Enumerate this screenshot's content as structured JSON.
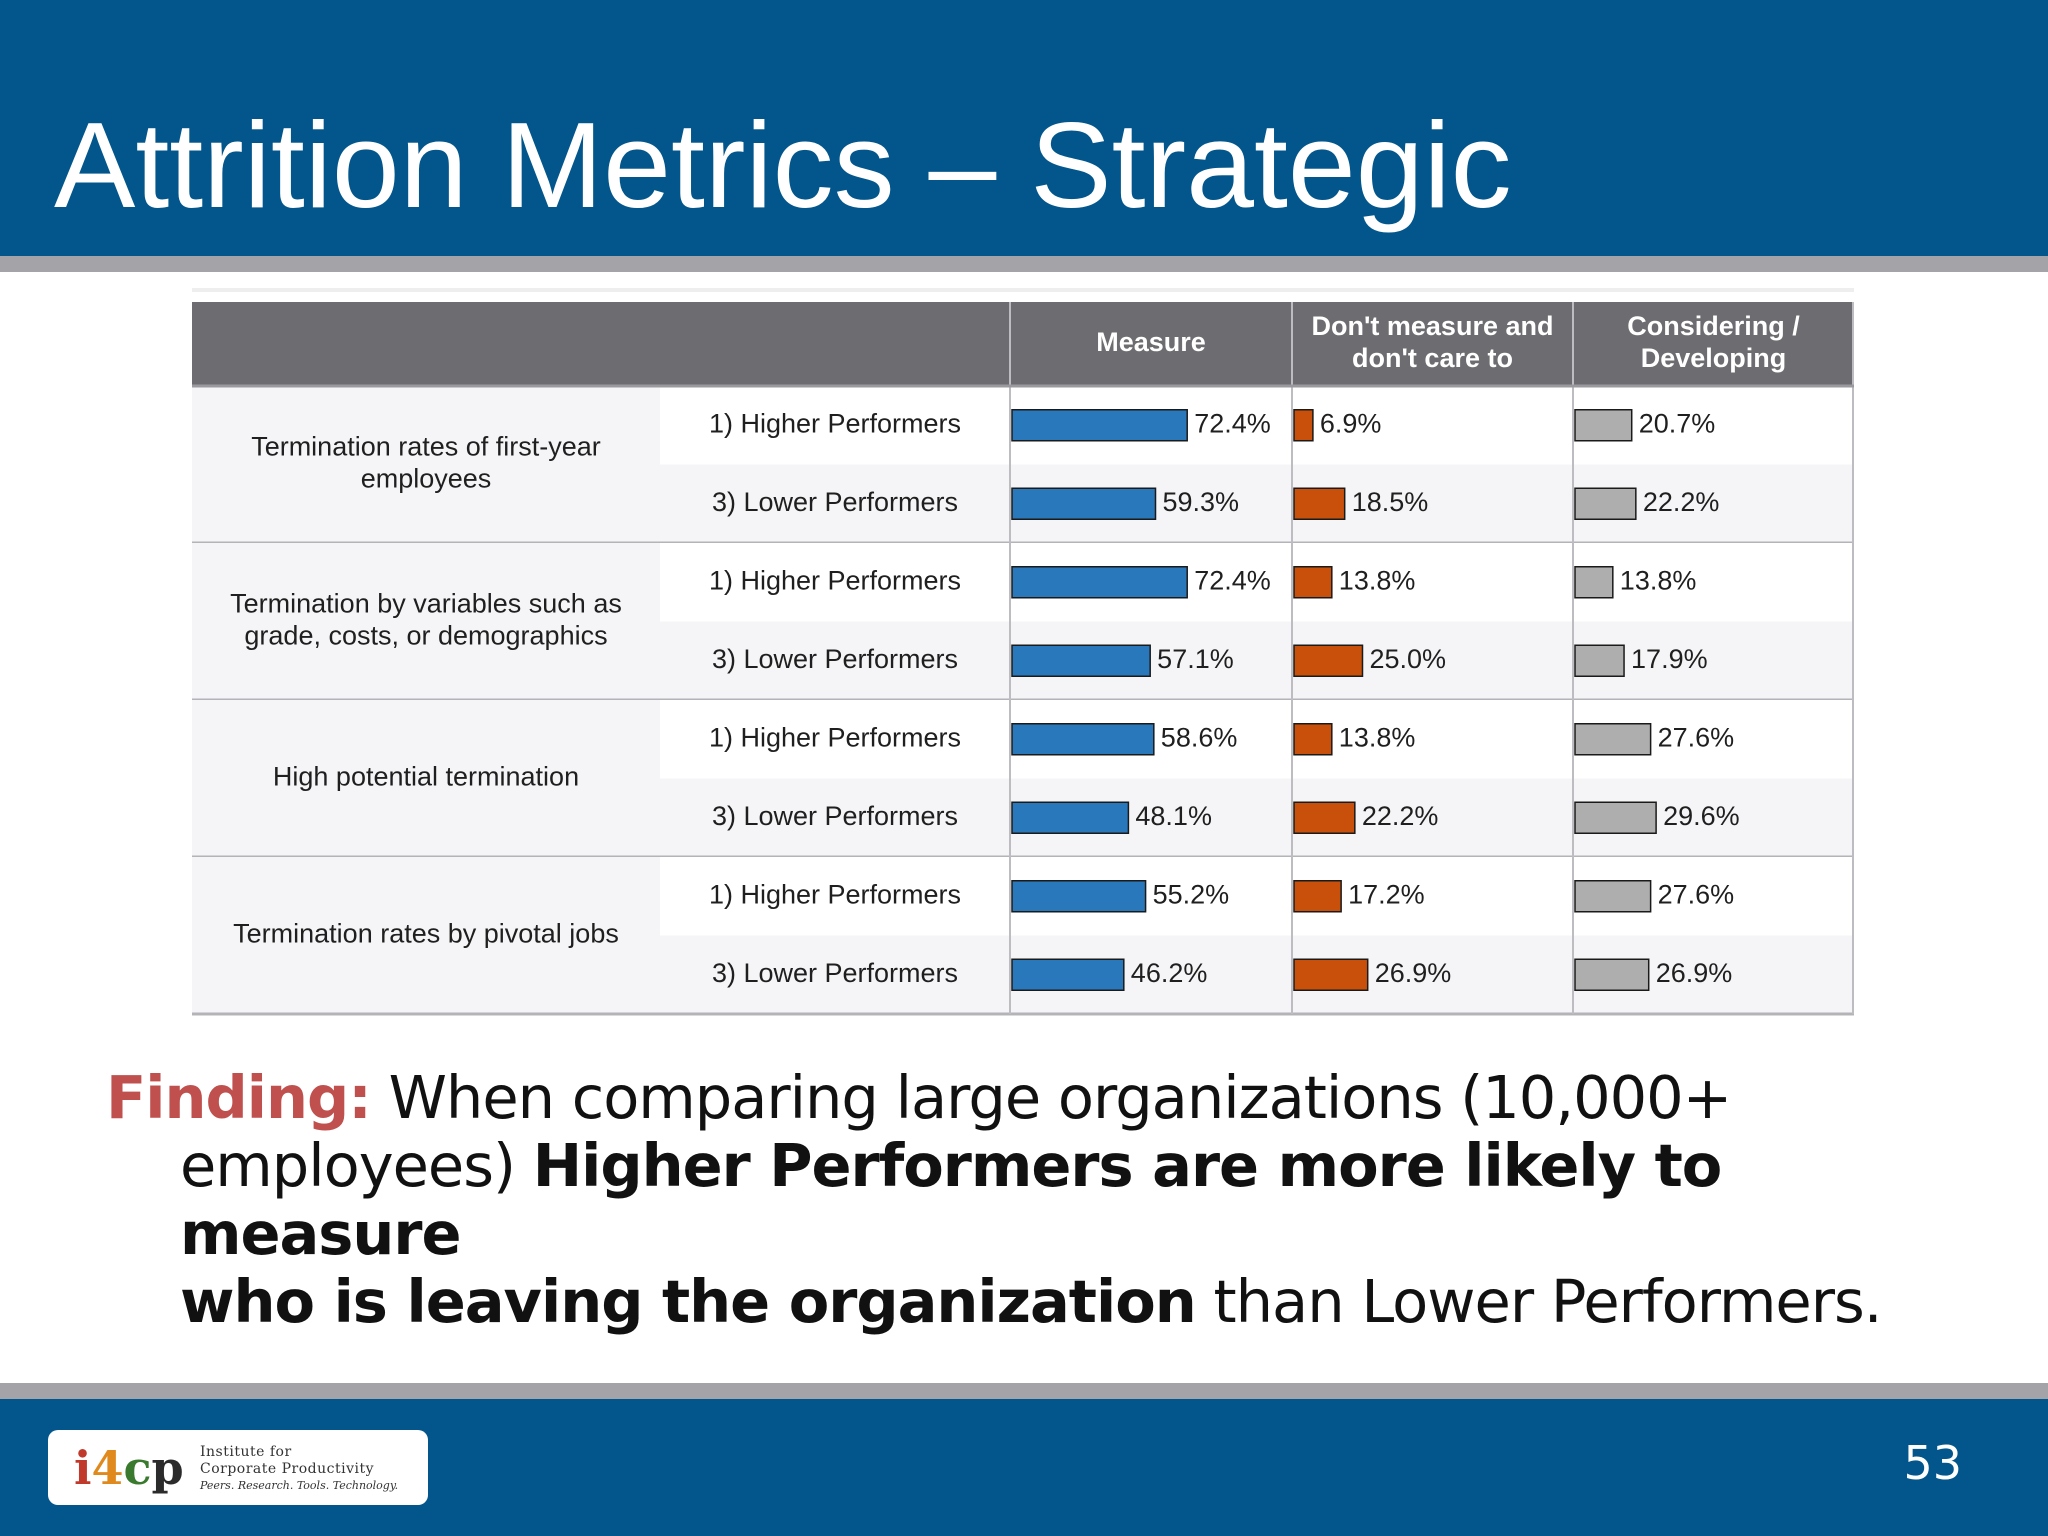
{
  "slide": {
    "title": "Attrition Metrics – Strategic",
    "page_number": "53"
  },
  "finding": {
    "lead": "Finding:",
    "text_1": " When comparing large organizations (10,000+",
    "text_2": "employees) ",
    "bold_1": "Higher Performers are more likely to measure",
    "bold_2": "who is leaving the organization",
    "text_3": " than Lower Performers."
  },
  "logo": {
    "mark": [
      "i",
      "4",
      "c",
      "p"
    ],
    "line1": "Institute for",
    "line2": "Corporate Productivity",
    "tagline": "Peers. Research. Tools. Technology."
  },
  "colors": {
    "header_band": "#02568c",
    "rule": "#a4a4a8",
    "table_header": "#6d6c70",
    "measure": "#2a78bc",
    "dont_measure": "#c8500a",
    "considering": "#aeaeae",
    "finding_accent": "#c0504d"
  },
  "chart_data": {
    "type": "table",
    "columns": [
      "Measure",
      "Don't measure and don't care to",
      "Considering / Developing"
    ],
    "column_header_lines": [
      [
        "Measure"
      ],
      [
        "Don't measure and",
        "don't care to"
      ],
      [
        "Considering /",
        "Developing"
      ]
    ],
    "metrics": [
      {
        "label_lines": [
          "Termination rates of first-year",
          "employees"
        ],
        "rows": [
          {
            "group": "1) Higher Performers",
            "values": [
              72.4,
              6.9,
              20.7
            ],
            "labels": [
              "72.4%",
              "6.9%",
              "20.7%"
            ]
          },
          {
            "group": "3) Lower Performers",
            "values": [
              59.3,
              18.5,
              22.2
            ],
            "labels": [
              "59.3%",
              "18.5%",
              "22.2%"
            ]
          }
        ]
      },
      {
        "label_lines": [
          "Termination by variables such as",
          "grade, costs, or demographics"
        ],
        "rows": [
          {
            "group": "1) Higher Performers",
            "values": [
              72.4,
              13.8,
              13.8
            ],
            "labels": [
              "72.4%",
              "13.8%",
              "13.8%"
            ]
          },
          {
            "group": "3) Lower Performers",
            "values": [
              57.1,
              25.0,
              17.9
            ],
            "labels": [
              "57.1%",
              "25.0%",
              "17.9%"
            ]
          }
        ]
      },
      {
        "label_lines": [
          "High potential termination"
        ],
        "rows": [
          {
            "group": "1) Higher Performers",
            "values": [
              58.6,
              13.8,
              27.6
            ],
            "labels": [
              "58.6%",
              "13.8%",
              "27.6%"
            ]
          },
          {
            "group": "3) Lower Performers",
            "values": [
              48.1,
              22.2,
              29.6
            ],
            "labels": [
              "48.1%",
              "22.2%",
              "29.6%"
            ]
          }
        ]
      },
      {
        "label_lines": [
          "Termination rates by pivotal jobs"
        ],
        "rows": [
          {
            "group": "1) Higher Performers",
            "values": [
              55.2,
              17.2,
              27.6
            ],
            "labels": [
              "55.2%",
              "17.2%",
              "27.6%"
            ]
          },
          {
            "group": "3) Lower Performers",
            "values": [
              46.2,
              26.9,
              26.9
            ],
            "labels": [
              "46.2%",
              "26.9%",
              "26.9%"
            ]
          }
        ]
      }
    ]
  }
}
